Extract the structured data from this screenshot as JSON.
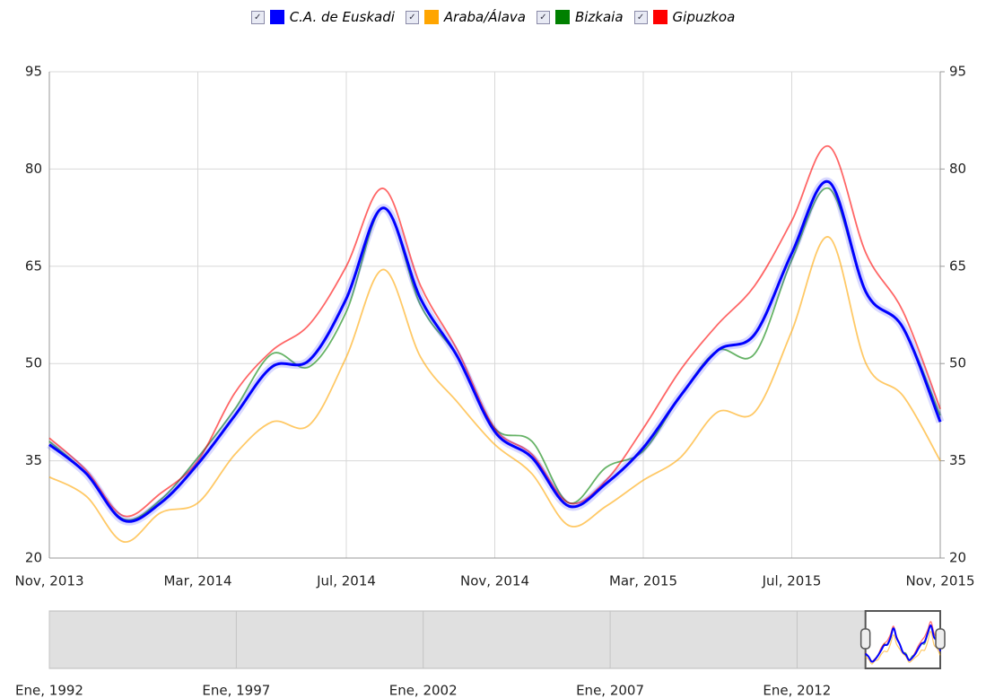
{
  "chart_data": {
    "type": "line",
    "categories": [
      "Nov, 2013",
      null,
      null,
      null,
      "Mar, 2014",
      null,
      null,
      null,
      "Jul, 2014",
      null,
      null,
      null,
      "Nov, 2014",
      null,
      null,
      null,
      "Mar, 2015",
      null,
      null,
      null,
      "Jul, 2015",
      null,
      null,
      null,
      "Nov, 2015"
    ],
    "series": [
      {
        "name": "C.A. de Euskadi",
        "color": "#0000ff",
        "values": [
          37.5,
          33,
          25.8,
          28.5,
          34.5,
          42,
          49.5,
          50.5,
          60,
          74,
          60,
          51,
          39.5,
          35.5,
          28,
          31.5,
          37,
          45,
          52,
          54.5,
          67,
          78,
          61,
          55.5,
          41
        ]
      },
      {
        "name": "Araba/Álava",
        "color": "#ffa500",
        "values": [
          32.5,
          29.5,
          22.5,
          27,
          28.5,
          36,
          41,
          40.5,
          51,
          64.5,
          51,
          44,
          37.5,
          33,
          25,
          28,
          32,
          35.5,
          42.5,
          42.5,
          55,
          69.5,
          50,
          45,
          35
        ]
      },
      {
        "name": "Bizkaia",
        "color": "#008000",
        "values": [
          38,
          33,
          26,
          29,
          35.5,
          43,
          51.5,
          49.5,
          58,
          74,
          59,
          51,
          40,
          38,
          28.5,
          34,
          36.5,
          45,
          52,
          51.5,
          66,
          77,
          61,
          55.5,
          42
        ]
      },
      {
        "name": "Gipuzkoa",
        "color": "#ff0000",
        "values": [
          38.5,
          33.5,
          26.5,
          30,
          35,
          45.5,
          52,
          56,
          65,
          77,
          62,
          52,
          40,
          36,
          28.5,
          32,
          40,
          49,
          56,
          62,
          72,
          83.5,
          67,
          58,
          43
        ]
      }
    ],
    "ylim": [
      20,
      95
    ],
    "yticks": [
      20,
      35,
      50,
      65,
      80,
      95
    ],
    "y2lim": [
      20,
      95
    ],
    "y2ticks": [
      20,
      35,
      50,
      65,
      80,
      95
    ],
    "grid": true,
    "legend": "top",
    "navigator": {
      "xlim": [
        1992,
        2015.83
      ],
      "xticks": [
        {
          "value": 1992,
          "label": "Ene, 1992"
        },
        {
          "value": 1997,
          "label": "Ene, 1997"
        },
        {
          "value": 2002,
          "label": "Ene, 2002"
        },
        {
          "value": 2007,
          "label": "Ene, 2007"
        },
        {
          "value": 2012,
          "label": "Ene, 2012"
        }
      ],
      "selection": [
        2013.83,
        2015.83
      ]
    }
  }
}
